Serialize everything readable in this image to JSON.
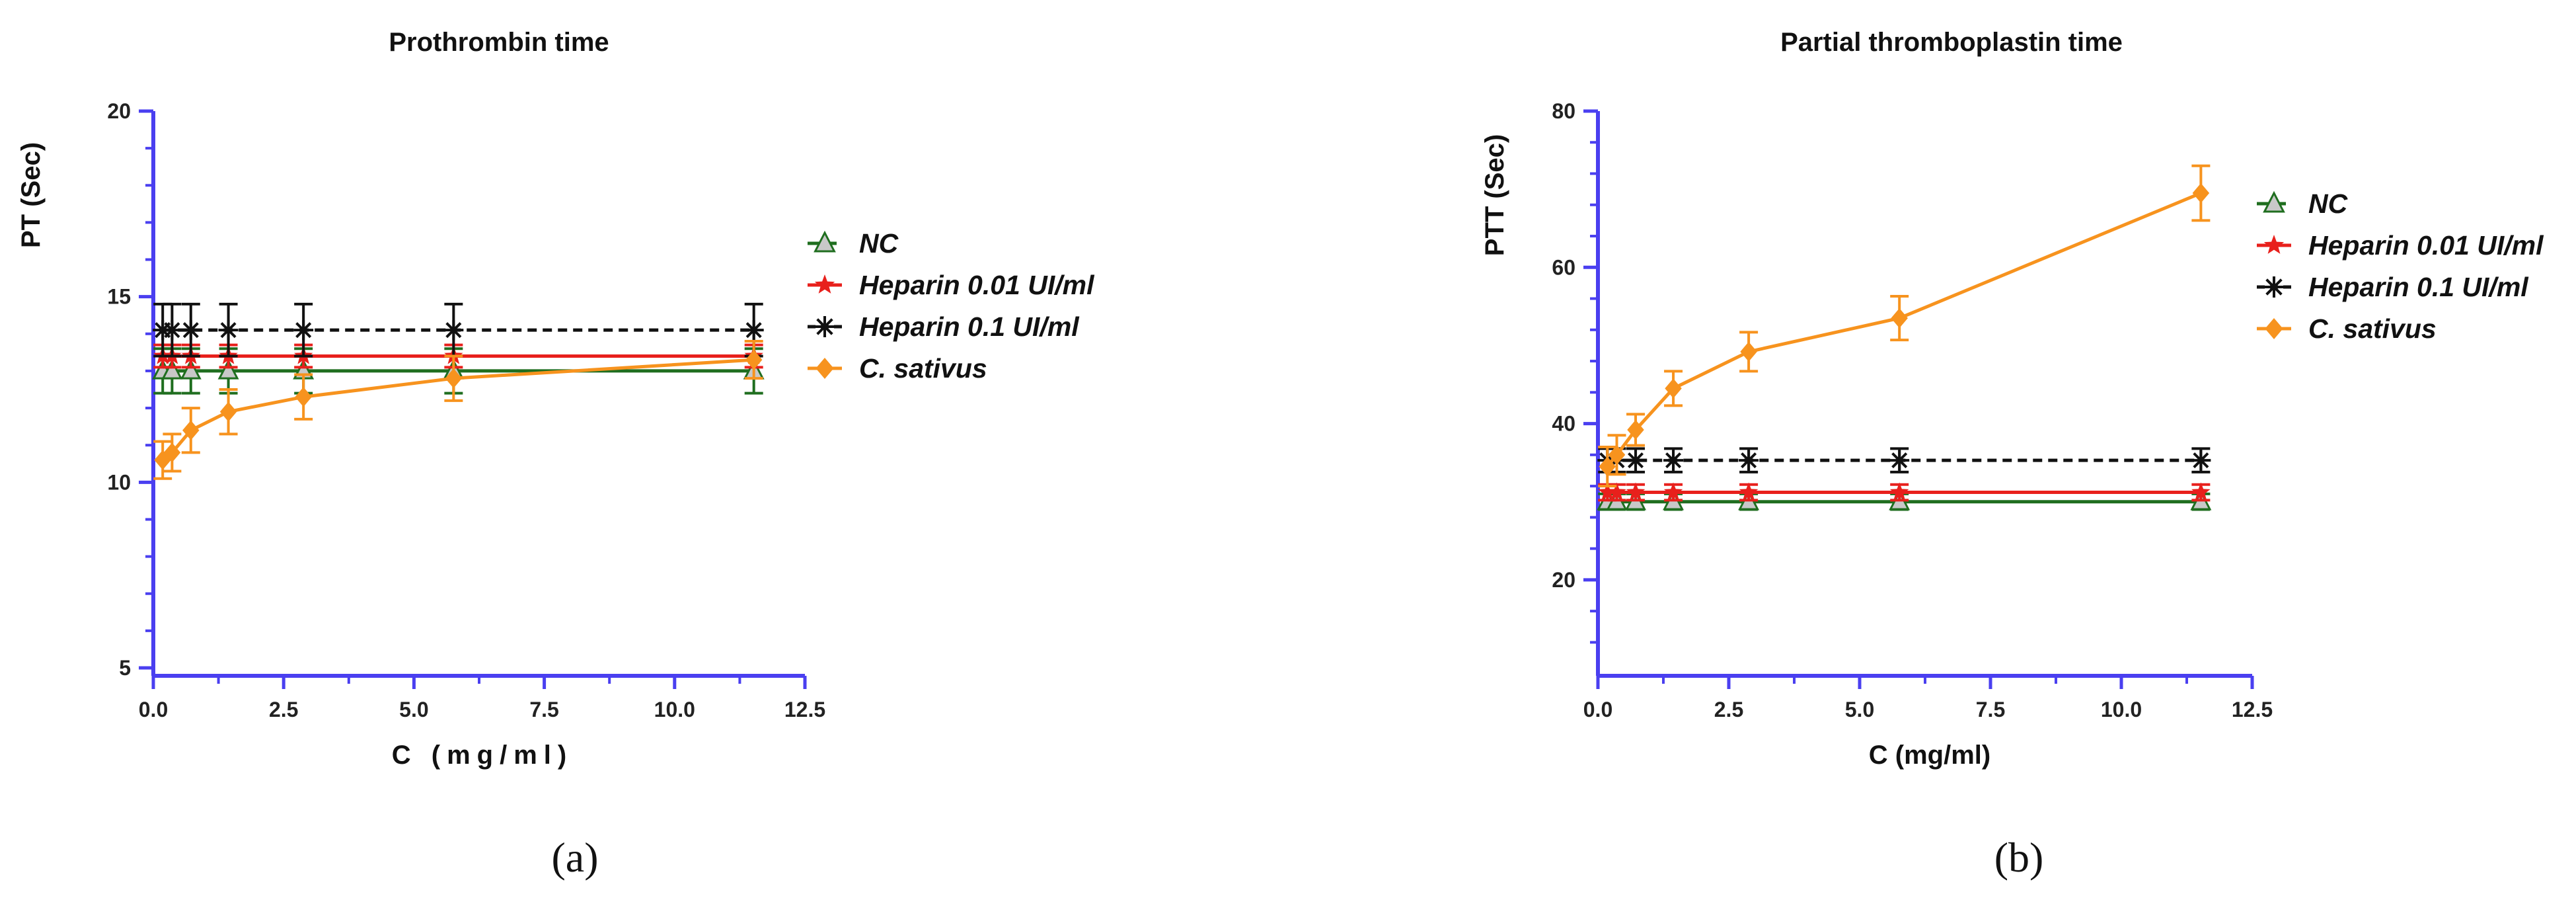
{
  "colors": {
    "axis": "#4a3ff0",
    "nc": "#1f6e1f",
    "nc_marker": "#c8c8c8",
    "hep001": "#e8201c",
    "hep01": "#111111",
    "sativus": "#f7931e",
    "text": "#111111"
  },
  "chart_data": [
    {
      "type": "line",
      "panel_label": "(a)",
      "title": "Prothrombin time",
      "xlabel": "C (mg/ml)",
      "ylabel": "PT (Sec)",
      "xlim": [
        0,
        12.5
      ],
      "ylim": [
        5,
        20
      ],
      "xticks": [
        "0.0",
        "2.5",
        "5.0",
        "7.5",
        "10.0",
        "12.5"
      ],
      "xtick_values": [
        0,
        2.5,
        5,
        7.5,
        10,
        12.5
      ],
      "yticks": [
        "5",
        "10",
        "15",
        "20"
      ],
      "ytick_values": [
        5,
        10,
        15,
        20
      ],
      "legend_position": "right",
      "x": [
        0.18,
        0.36,
        0.72,
        1.44,
        2.88,
        5.76,
        11.52
      ],
      "series": [
        {
          "name": "NC",
          "key": "nc",
          "values": [
            13.0,
            13.0,
            13.0,
            13.0,
            13.0,
            13.0,
            13.0
          ],
          "errors": [
            0.6,
            0.6,
            0.6,
            0.6,
            0.6,
            0.6,
            0.6
          ]
        },
        {
          "name": "Heparin 0.01 UI/ml",
          "key": "hep001",
          "values": [
            13.4,
            13.4,
            13.4,
            13.4,
            13.4,
            13.4,
            13.4
          ],
          "errors": [
            0.3,
            0.3,
            0.3,
            0.3,
            0.3,
            0.3,
            0.3
          ]
        },
        {
          "name": "Heparin 0.1 UI/ml",
          "key": "hep01",
          "values": [
            14.1,
            14.1,
            14.1,
            14.1,
            14.1,
            14.1,
            14.1
          ],
          "errors": [
            0.7,
            0.7,
            0.7,
            0.7,
            0.7,
            0.7,
            0.7
          ]
        },
        {
          "name": "C. sativus",
          "key": "sativus",
          "values": [
            10.6,
            10.8,
            11.4,
            11.9,
            12.3,
            12.8,
            13.3
          ],
          "errors": [
            0.5,
            0.5,
            0.6,
            0.6,
            0.6,
            0.6,
            0.5
          ]
        }
      ]
    },
    {
      "type": "line",
      "panel_label": "(b)",
      "title": "Partial thromboplastin time",
      "xlabel": "C (mg/ml)",
      "ylabel": "PTT (Sec)",
      "xlim": [
        0,
        12.5
      ],
      "ylim": [
        10,
        80
      ],
      "xticks": [
        "0.0",
        "2.5",
        "5.0",
        "7.5",
        "10.0",
        "12.5"
      ],
      "xtick_values": [
        0,
        2.5,
        5,
        7.5,
        10,
        12.5
      ],
      "yticks": [
        "20",
        "40",
        "60",
        "80"
      ],
      "ytick_values": [
        20,
        40,
        60,
        80
      ],
      "legend_position": "right",
      "x": [
        0.18,
        0.36,
        0.72,
        1.44,
        2.88,
        5.76,
        11.52
      ],
      "series": [
        {
          "name": "NC",
          "key": "nc",
          "values": [
            30.0,
            30.0,
            30.0,
            30.0,
            30.0,
            30.0,
            30.0
          ],
          "errors": [
            1.0,
            1.0,
            1.0,
            1.0,
            1.0,
            1.0,
            1.0
          ]
        },
        {
          "name": "Heparin 0.01 UI/ml",
          "key": "hep001",
          "values": [
            31.2,
            31.2,
            31.2,
            31.2,
            31.2,
            31.2,
            31.2
          ],
          "errors": [
            1.0,
            1.0,
            1.0,
            1.0,
            1.0,
            1.0,
            1.0
          ]
        },
        {
          "name": "Heparin 0.1 UI/ml",
          "key": "hep01",
          "values": [
            35.3,
            35.3,
            35.3,
            35.3,
            35.3,
            35.3,
            35.3
          ],
          "errors": [
            1.5,
            1.5,
            1.5,
            1.5,
            1.5,
            1.5,
            1.5
          ]
        },
        {
          "name": "C. sativus",
          "key": "sativus",
          "values": [
            34.5,
            36.0,
            39.2,
            44.5,
            49.2,
            53.5,
            69.5
          ],
          "errors": [
            2.5,
            2.5,
            2.0,
            2.2,
            2.5,
            2.8,
            3.5
          ]
        }
      ]
    }
  ]
}
